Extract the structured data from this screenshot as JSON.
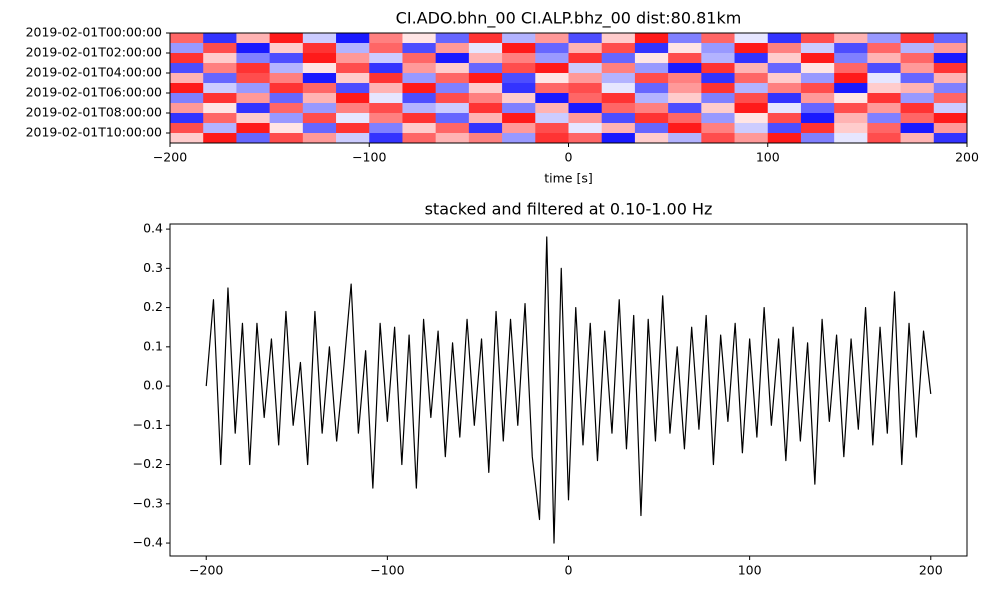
{
  "chart_data": [
    {
      "type": "heatmap",
      "title": "CI.ADO.bhn_00 CI.ALP.bhz_00  dist:80.81km",
      "xlabel": "time [s]",
      "categories": [
        "2019-02-01T00:00:00",
        null,
        "2019-02-01T02:00:00",
        null,
        "2019-02-01T04:00:00",
        null,
        "2019-02-01T06:00:00",
        null,
        "2019-02-01T08:00:00",
        null,
        "2019-02-01T10:00:00"
      ],
      "z": [
        [
          0.6,
          -0.8,
          0.3,
          0.9,
          -0.2,
          -0.9,
          0.5,
          0.1,
          -0.6,
          0.8,
          -0.3,
          0.4,
          -0.7,
          0.2,
          0.9,
          -0.5,
          0.6,
          -0.1,
          -0.8,
          0.7,
          0.3,
          -0.4,
          0.8,
          -0.6
        ],
        [
          -0.4,
          0.7,
          -0.9,
          0.2,
          0.8,
          -0.3,
          0.6,
          -0.7,
          0.4,
          -0.1,
          0.9,
          -0.6,
          0.3,
          0.7,
          -0.8,
          0.1,
          -0.4,
          0.9,
          0.5,
          -0.2,
          -0.7,
          0.6,
          -0.3,
          0.4
        ],
        [
          0.8,
          0.2,
          -0.5,
          -0.7,
          0.9,
          0.4,
          -0.2,
          0.6,
          -0.9,
          0.3,
          0.5,
          -0.4,
          0.8,
          -0.6,
          0.1,
          0.7,
          -0.3,
          -0.8,
          0.2,
          0.9,
          -0.5,
          0.3,
          0.6,
          -0.9
        ],
        [
          -0.7,
          0.5,
          0.8,
          -0.3,
          0.1,
          0.7,
          -0.8,
          0.4,
          0.2,
          -0.6,
          0.7,
          0.9,
          -0.2,
          0.5,
          -0.4,
          -0.9,
          0.8,
          0.3,
          -0.6,
          0.1,
          0.6,
          -0.7,
          0.4,
          0.8
        ],
        [
          0.3,
          -0.6,
          0.7,
          0.5,
          -0.9,
          0.2,
          0.8,
          -0.4,
          0.6,
          0.9,
          -0.7,
          0.1,
          0.4,
          -0.3,
          0.7,
          0.5,
          -0.8,
          0.6,
          0.2,
          -0.4,
          0.9,
          -0.1,
          -0.6,
          0.3
        ],
        [
          0.9,
          -0.2,
          -0.4,
          0.8,
          0.6,
          -0.7,
          0.3,
          0.9,
          -0.5,
          0.2,
          -0.8,
          0.6,
          0.7,
          -0.1,
          -0.6,
          0.4,
          0.8,
          -0.3,
          0.5,
          0.7,
          -0.9,
          0.2,
          0.3,
          -0.5
        ],
        [
          -0.5,
          0.8,
          0.4,
          -0.6,
          0.3,
          0.9,
          -0.1,
          -0.7,
          0.7,
          0.5,
          0.2,
          -0.9,
          0.6,
          0.8,
          -0.3,
          0.2,
          -0.5,
          0.7,
          -0.8,
          0.4,
          0.1,
          0.8,
          -0.4,
          0.6
        ],
        [
          0.4,
          0.1,
          -0.8,
          0.6,
          -0.4,
          0.5,
          0.7,
          -0.3,
          -0.2,
          0.8,
          -0.5,
          0.3,
          -0.9,
          0.6,
          0.5,
          -0.7,
          0.2,
          0.9,
          -0.1,
          -0.6,
          0.7,
          0.4,
          0.8,
          -0.2
        ],
        [
          -0.8,
          0.6,
          0.2,
          -0.4,
          0.7,
          -0.1,
          0.5,
          0.8,
          -0.6,
          0.3,
          0.9,
          -0.2,
          0.4,
          -0.7,
          0.8,
          0.6,
          -0.4,
          0.1,
          0.7,
          -0.9,
          0.3,
          -0.5,
          0.6,
          0.9
        ],
        [
          0.7,
          -0.3,
          0.9,
          0.1,
          -0.6,
          0.8,
          -0.5,
          0.2,
          0.6,
          -0.8,
          0.4,
          0.7,
          -0.1,
          0.3,
          -0.6,
          0.9,
          0.5,
          -0.2,
          -0.7,
          0.8,
          0.2,
          0.6,
          -0.9,
          0.4
        ],
        [
          0.2,
          0.9,
          -0.6,
          0.7,
          0.4,
          -0.2,
          -0.8,
          0.6,
          0.3,
          0.5,
          -0.4,
          0.8,
          0.6,
          -0.9,
          0.2,
          -0.3,
          0.7,
          0.4,
          0.9,
          -0.5,
          -0.1,
          0.7,
          0.3,
          -0.8
        ]
      ],
      "zlim": [
        -1,
        1
      ],
      "colors": [
        "#0000ff",
        "#ffffff",
        "#ff0000"
      ],
      "xlim": [
        -200,
        200
      ],
      "xticks": [
        {
          "value": -200,
          "label": "−200"
        },
        {
          "value": -100,
          "label": "−100"
        },
        0,
        100,
        200
      ]
    },
    {
      "type": "line",
      "title": "stacked and filtered at 0.10-1.00 Hz",
      "color": "#000000",
      "x": [
        -200,
        -196,
        -192,
        -188,
        -184,
        -180,
        -176,
        -172,
        -168,
        -164,
        -160,
        -156,
        -152,
        -148,
        -144,
        -140,
        -136,
        -132,
        -128,
        -124,
        -120,
        -116,
        -112,
        -108,
        -104,
        -100,
        -96,
        -92,
        -88,
        -84,
        -80,
        -76,
        -72,
        -68,
        -64,
        -60,
        -56,
        -52,
        -48,
        -44,
        -40,
        -36,
        -32,
        -28,
        -24,
        -20,
        -16,
        -12,
        -8,
        -4,
        0,
        4,
        8,
        12,
        16,
        20,
        24,
        28,
        32,
        36,
        40,
        44,
        48,
        52,
        56,
        60,
        64,
        68,
        72,
        76,
        80,
        84,
        88,
        92,
        96,
        100,
        104,
        108,
        112,
        116,
        120,
        124,
        128,
        132,
        136,
        140,
        144,
        148,
        152,
        156,
        160,
        164,
        168,
        172,
        176,
        180,
        184,
        188,
        192,
        196,
        200
      ],
      "values": [
        0.0,
        0.22,
        -0.2,
        0.25,
        -0.12,
        0.16,
        -0.2,
        0.16,
        -0.08,
        0.12,
        -0.15,
        0.19,
        -0.1,
        0.06,
        -0.2,
        0.19,
        -0.12,
        0.1,
        -0.14,
        0.05,
        0.26,
        -0.12,
        0.09,
        -0.26,
        0.16,
        -0.09,
        0.15,
        -0.2,
        0.13,
        -0.26,
        0.17,
        -0.08,
        0.14,
        -0.18,
        0.11,
        -0.13,
        0.17,
        -0.1,
        0.12,
        -0.22,
        0.19,
        -0.14,
        0.17,
        -0.1,
        0.21,
        -0.18,
        -0.34,
        0.38,
        -0.4,
        0.3,
        -0.29,
        0.2,
        -0.15,
        0.16,
        -0.19,
        0.14,
        -0.12,
        0.22,
        -0.16,
        0.18,
        -0.33,
        0.17,
        -0.14,
        0.23,
        -0.12,
        0.1,
        -0.16,
        0.15,
        -0.11,
        0.18,
        -0.2,
        0.13,
        -0.09,
        0.16,
        -0.17,
        0.12,
        -0.13,
        0.2,
        -0.1,
        0.12,
        -0.19,
        0.15,
        -0.14,
        0.11,
        -0.25,
        0.17,
        -0.09,
        0.13,
        -0.18,
        0.12,
        -0.11,
        0.2,
        -0.15,
        0.15,
        -0.12,
        0.24,
        -0.2,
        0.16,
        -0.13,
        0.14,
        -0.02
      ],
      "xlim": [
        -220,
        220
      ],
      "xticks": [
        {
          "value": -200,
          "label": "−200"
        },
        {
          "value": -100,
          "label": "−100"
        },
        0,
        100,
        200
      ],
      "ylim": [
        -0.433,
        0.413
      ],
      "yticks": [
        {
          "value": -0.4,
          "label": "−0.4"
        },
        {
          "value": -0.3,
          "label": "−0.3"
        },
        {
          "value": -0.2,
          "label": "−0.2"
        },
        {
          "value": -0.1,
          "label": "−0.1"
        },
        {
          "value": 0,
          "label": "0.0"
        },
        0.1,
        0.2,
        0.3,
        0.4
      ]
    }
  ]
}
